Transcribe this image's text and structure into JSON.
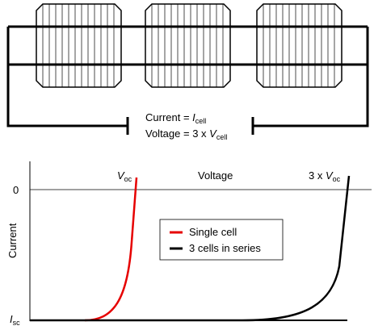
{
  "circuit": {
    "current_label": {
      "prefix": "Current = ",
      "symbol": "I",
      "subscript": "cell"
    },
    "voltage_label": {
      "prefix": "Voltage = 3 x ",
      "symbol": "V",
      "subscript": "cell"
    }
  },
  "iv_chart": {
    "x_axis_label": "Voltage",
    "y_axis_label": "Current",
    "zero_label": "0",
    "isc_label": {
      "symbol": "I",
      "subscript": "sc"
    },
    "voc_label": {
      "symbol": "V",
      "subscript": "oc"
    },
    "voc3_label": {
      "prefix": "3 x ",
      "symbol": "V",
      "subscript": "oc"
    },
    "legend": [
      {
        "name": "Single cell",
        "color": "#e60000"
      },
      {
        "name": "3 cells in series",
        "color": "#000000"
      }
    ]
  }
}
